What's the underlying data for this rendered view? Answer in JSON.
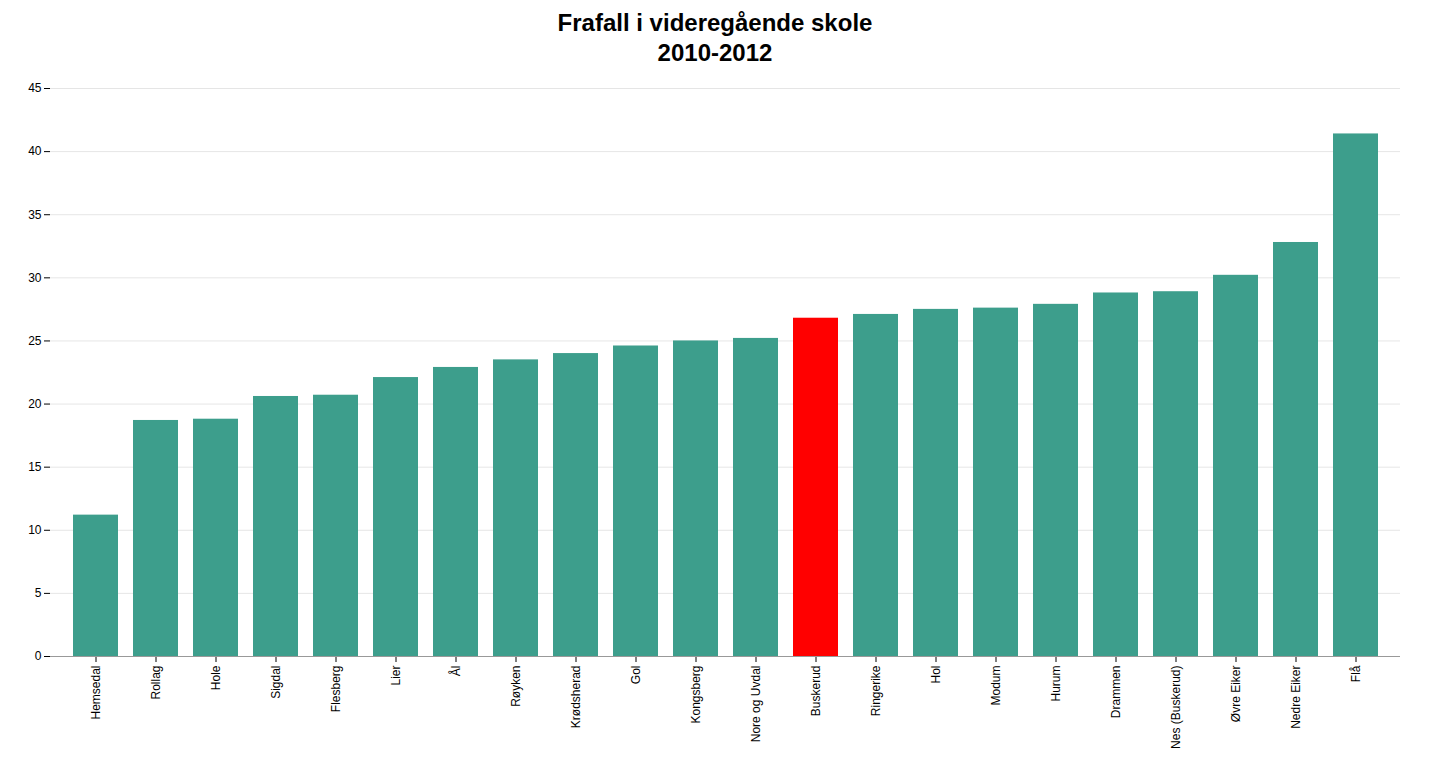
{
  "chart_data": {
    "type": "bar",
    "title": "Frafall i videregående skole",
    "subtitle": "2010-2012",
    "categories": [
      "Hemsedal",
      "Rollag",
      "Hole",
      "Sigdal",
      "Flesberg",
      "Lier",
      "Ål",
      "Røyken",
      "Krødsherad",
      "Gol",
      "Kongsberg",
      "Nore og Uvdal",
      "Buskerud",
      "Ringerike",
      "Hol",
      "Modum",
      "Hurum",
      "Drammen",
      "Nes (Buskerud)",
      "Øvre Eiker",
      "Nedre Eiker",
      "Flå"
    ],
    "values": [
      11.2,
      18.7,
      18.8,
      20.6,
      20.7,
      22.1,
      22.9,
      23.5,
      24.0,
      24.6,
      25.0,
      25.2,
      26.8,
      27.1,
      27.5,
      27.6,
      27.9,
      28.8,
      28.9,
      30.2,
      32.8,
      41.4
    ],
    "colors": [
      "#3d9e8c",
      "#3d9e8c",
      "#3d9e8c",
      "#3d9e8c",
      "#3d9e8c",
      "#3d9e8c",
      "#3d9e8c",
      "#3d9e8c",
      "#3d9e8c",
      "#3d9e8c",
      "#3d9e8c",
      "#3d9e8c",
      "#ff0000",
      "#3d9e8c",
      "#3d9e8c",
      "#3d9e8c",
      "#3d9e8c",
      "#3d9e8c",
      "#3d9e8c",
      "#3d9e8c",
      "#3d9e8c",
      "#3d9e8c"
    ],
    "ylim": [
      0,
      45
    ],
    "yticks": [
      0,
      5,
      10,
      15,
      20,
      25,
      30,
      35,
      40,
      45
    ],
    "grid": true
  }
}
